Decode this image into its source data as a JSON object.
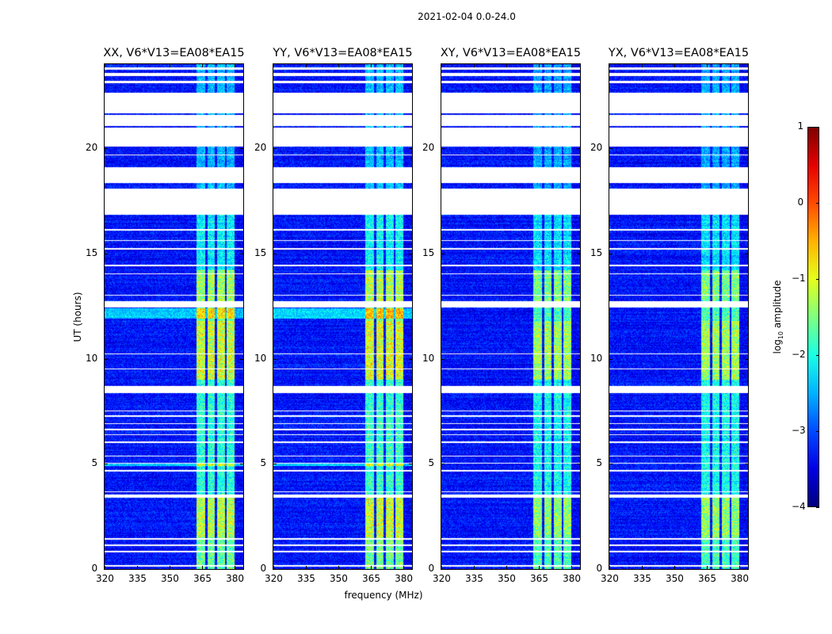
{
  "chart_data": {
    "type": "heatmap",
    "suptitle": "2021-02-04 0.0-24.0",
    "xlabel": "frequency (MHz)",
    "ylabel": "UT (hours)",
    "xlim": [
      320,
      384
    ],
    "ylim": [
      0,
      24
    ],
    "xticks": [
      320,
      335,
      350,
      365,
      380
    ],
    "yticks": [
      0,
      5,
      10,
      15,
      20
    ],
    "panels": [
      {
        "title": "XX, V6*V13=EA08*EA15",
        "bright_level": -2.4,
        "rfi_scale": 1.1
      },
      {
        "title": "YY, V6*V13=EA08*EA15",
        "bright_level": -2.3,
        "rfi_scale": 1.15
      },
      {
        "title": "XY, V6*V13=EA08*EA15",
        "bright_level": -3.3,
        "rfi_scale": 1.0
      },
      {
        "title": "YX, V6*V13=EA08*EA15",
        "bright_level": -3.3,
        "rfi_scale": 1.0
      }
    ],
    "colorbar": {
      "label_prefix": "log",
      "label_sub": "10",
      "label_suffix": " amplitude",
      "range": [
        -4,
        1
      ],
      "ticks": [
        "1",
        "0",
        "−1",
        "−2",
        "−3",
        "−4"
      ],
      "tick_values": [
        1,
        0,
        -1,
        -2,
        -3,
        -4
      ],
      "colormap": "jet"
    },
    "background_level": -3.3,
    "flagged_hours": [
      [
        0.1,
        0.18
      ],
      [
        0.8,
        0.86
      ],
      [
        1.1,
        1.16
      ],
      [
        1.4,
        1.48
      ],
      [
        3.4,
        3.55
      ],
      [
        3.65,
        3.7
      ],
      [
        4.65,
        4.72
      ],
      [
        5.0,
        5.06
      ],
      [
        5.35,
        5.4
      ],
      [
        6.0,
        6.05
      ],
      [
        6.35,
        6.4
      ],
      [
        6.6,
        6.65
      ],
      [
        6.9,
        6.95
      ],
      [
        7.25,
        7.3
      ],
      [
        7.5,
        7.55
      ],
      [
        8.35,
        8.7
      ],
      [
        9.5,
        9.55
      ],
      [
        10.2,
        10.25
      ],
      [
        12.45,
        12.75
      ],
      [
        13.0,
        13.05
      ],
      [
        14.0,
        14.05
      ],
      [
        14.4,
        14.45
      ],
      [
        15.2,
        15.25
      ],
      [
        15.6,
        15.65
      ],
      [
        16.1,
        16.15
      ],
      [
        16.85,
        18.1
      ],
      [
        18.35,
        19.1
      ],
      [
        19.65,
        19.72
      ],
      [
        20.1,
        21.0
      ],
      [
        21.08,
        21.6
      ],
      [
        21.68,
        22.65
      ],
      [
        23.1,
        23.2
      ],
      [
        23.45,
        23.6
      ],
      [
        23.75,
        23.85
      ]
    ],
    "bright_hours": [
      [
        11.9,
        12.4
      ],
      [
        4.9,
        5.0
      ]
    ],
    "rfi_channels_mhz": [
      [
        362.5,
        366.5
      ],
      [
        367.5,
        371
      ],
      [
        372,
        375.5
      ],
      [
        376.5,
        380
      ]
    ],
    "rfi_activity": [
      [
        0,
        1.5,
        1.6
      ],
      [
        1.5,
        3.4,
        2.0
      ],
      [
        3.4,
        9,
        1.3
      ],
      [
        9,
        11.8,
        2.1
      ],
      [
        11.8,
        12.5,
        1.6
      ],
      [
        12.75,
        14.2,
        1.9
      ],
      [
        14.2,
        16.85,
        1.1
      ],
      [
        16.85,
        24,
        0.8
      ]
    ]
  }
}
